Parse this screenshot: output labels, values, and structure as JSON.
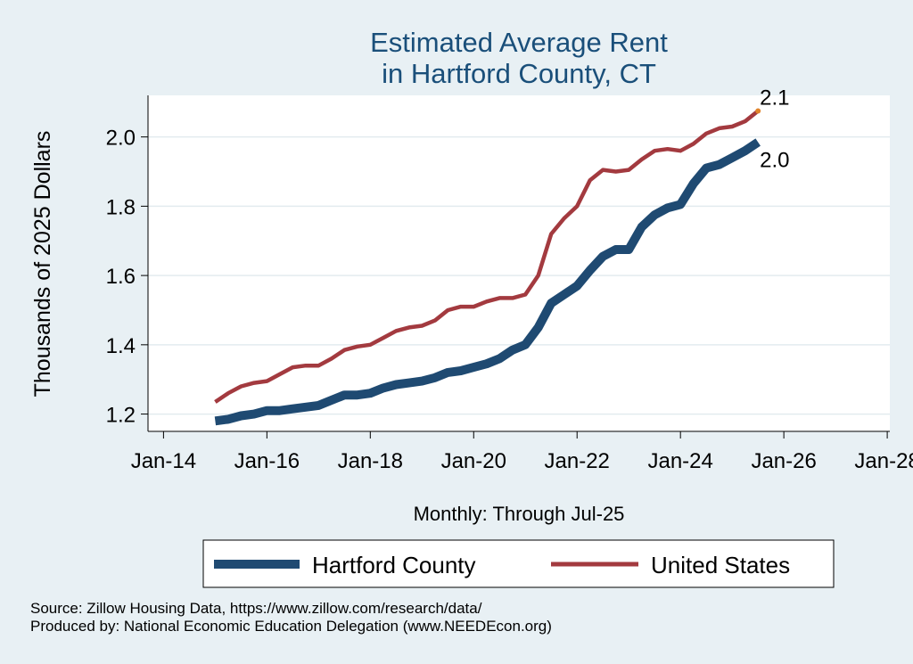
{
  "chart_data": {
    "type": "line",
    "title": [
      "Estimated Average Rent",
      "in Hartford County, CT"
    ],
    "ylabel": "Thousands of 2025 Dollars",
    "xlabel": "Monthly: Through Jul-25",
    "ylim": [
      1.15,
      2.12
    ],
    "yticks": [
      1.2,
      1.4,
      1.6,
      1.8,
      2.0
    ],
    "ytick_labels": [
      "1.2",
      "1.4",
      "1.6",
      "1.8",
      "2.0"
    ],
    "xlim": [
      2013.7,
      2028.05
    ],
    "xticks": [
      2014,
      2016,
      2018,
      2020,
      2022,
      2024,
      2026,
      2028
    ],
    "xtick_labels": [
      "Jan-14",
      "Jan-16",
      "Jan-18",
      "Jan-20",
      "Jan-22",
      "Jan-24",
      "Jan-26",
      "Jan-28"
    ],
    "grid": true,
    "series": [
      {
        "name": "Hartford County",
        "color": "#1f4a72",
        "x": [
          2015.0,
          2015.25,
          2015.5,
          2015.75,
          2016.0,
          2016.25,
          2016.5,
          2016.75,
          2017.0,
          2017.25,
          2017.5,
          2017.75,
          2018.0,
          2018.25,
          2018.5,
          2018.75,
          2019.0,
          2019.25,
          2019.5,
          2019.75,
          2020.0,
          2020.25,
          2020.5,
          2020.75,
          2021.0,
          2021.25,
          2021.5,
          2021.75,
          2022.0,
          2022.25,
          2022.5,
          2022.75,
          2023.0,
          2023.25,
          2023.5,
          2023.75,
          2024.0,
          2024.25,
          2024.5,
          2024.75,
          2025.0,
          2025.25,
          2025.5
        ],
        "values": [
          1.18,
          1.185,
          1.195,
          1.2,
          1.21,
          1.21,
          1.215,
          1.22,
          1.225,
          1.24,
          1.255,
          1.255,
          1.26,
          1.275,
          1.285,
          1.29,
          1.295,
          1.305,
          1.32,
          1.325,
          1.335,
          1.345,
          1.36,
          1.385,
          1.4,
          1.45,
          1.52,
          1.545,
          1.57,
          1.615,
          1.655,
          1.675,
          1.675,
          1.74,
          1.775,
          1.795,
          1.805,
          1.865,
          1.91,
          1.92,
          1.94,
          1.96,
          1.985
        ],
        "end_label": "2.0"
      },
      {
        "name": "United States",
        "color": "#a33a3f",
        "x": [
          2015.0,
          2015.25,
          2015.5,
          2015.75,
          2016.0,
          2016.25,
          2016.5,
          2016.75,
          2017.0,
          2017.25,
          2017.5,
          2017.75,
          2018.0,
          2018.25,
          2018.5,
          2018.75,
          2019.0,
          2019.25,
          2019.5,
          2019.75,
          2020.0,
          2020.25,
          2020.5,
          2020.75,
          2021.0,
          2021.25,
          2021.5,
          2021.75,
          2022.0,
          2022.25,
          2022.5,
          2022.75,
          2023.0,
          2023.25,
          2023.5,
          2023.75,
          2024.0,
          2024.25,
          2024.5,
          2024.75,
          2025.0,
          2025.25,
          2025.5
        ],
        "values": [
          1.235,
          1.26,
          1.28,
          1.29,
          1.295,
          1.315,
          1.335,
          1.34,
          1.34,
          1.36,
          1.385,
          1.395,
          1.4,
          1.42,
          1.44,
          1.45,
          1.455,
          1.47,
          1.5,
          1.51,
          1.51,
          1.525,
          1.535,
          1.535,
          1.545,
          1.6,
          1.72,
          1.765,
          1.8,
          1.875,
          1.905,
          1.9,
          1.905,
          1.935,
          1.96,
          1.965,
          1.96,
          1.98,
          2.01,
          2.025,
          2.03,
          2.045,
          2.075
        ],
        "end_label": "2.1",
        "end_marker_color": "#e0832a"
      }
    ],
    "legend": {
      "position": "bottom",
      "entries": [
        "Hartford County",
        "United States"
      ]
    }
  },
  "notes": {
    "source": "Source: Zillow Housing Data, https://www.zillow.com/research/data/",
    "produced_by": "Produced by: National Economic Education Delegation (www.NEEDEcon.org)"
  }
}
